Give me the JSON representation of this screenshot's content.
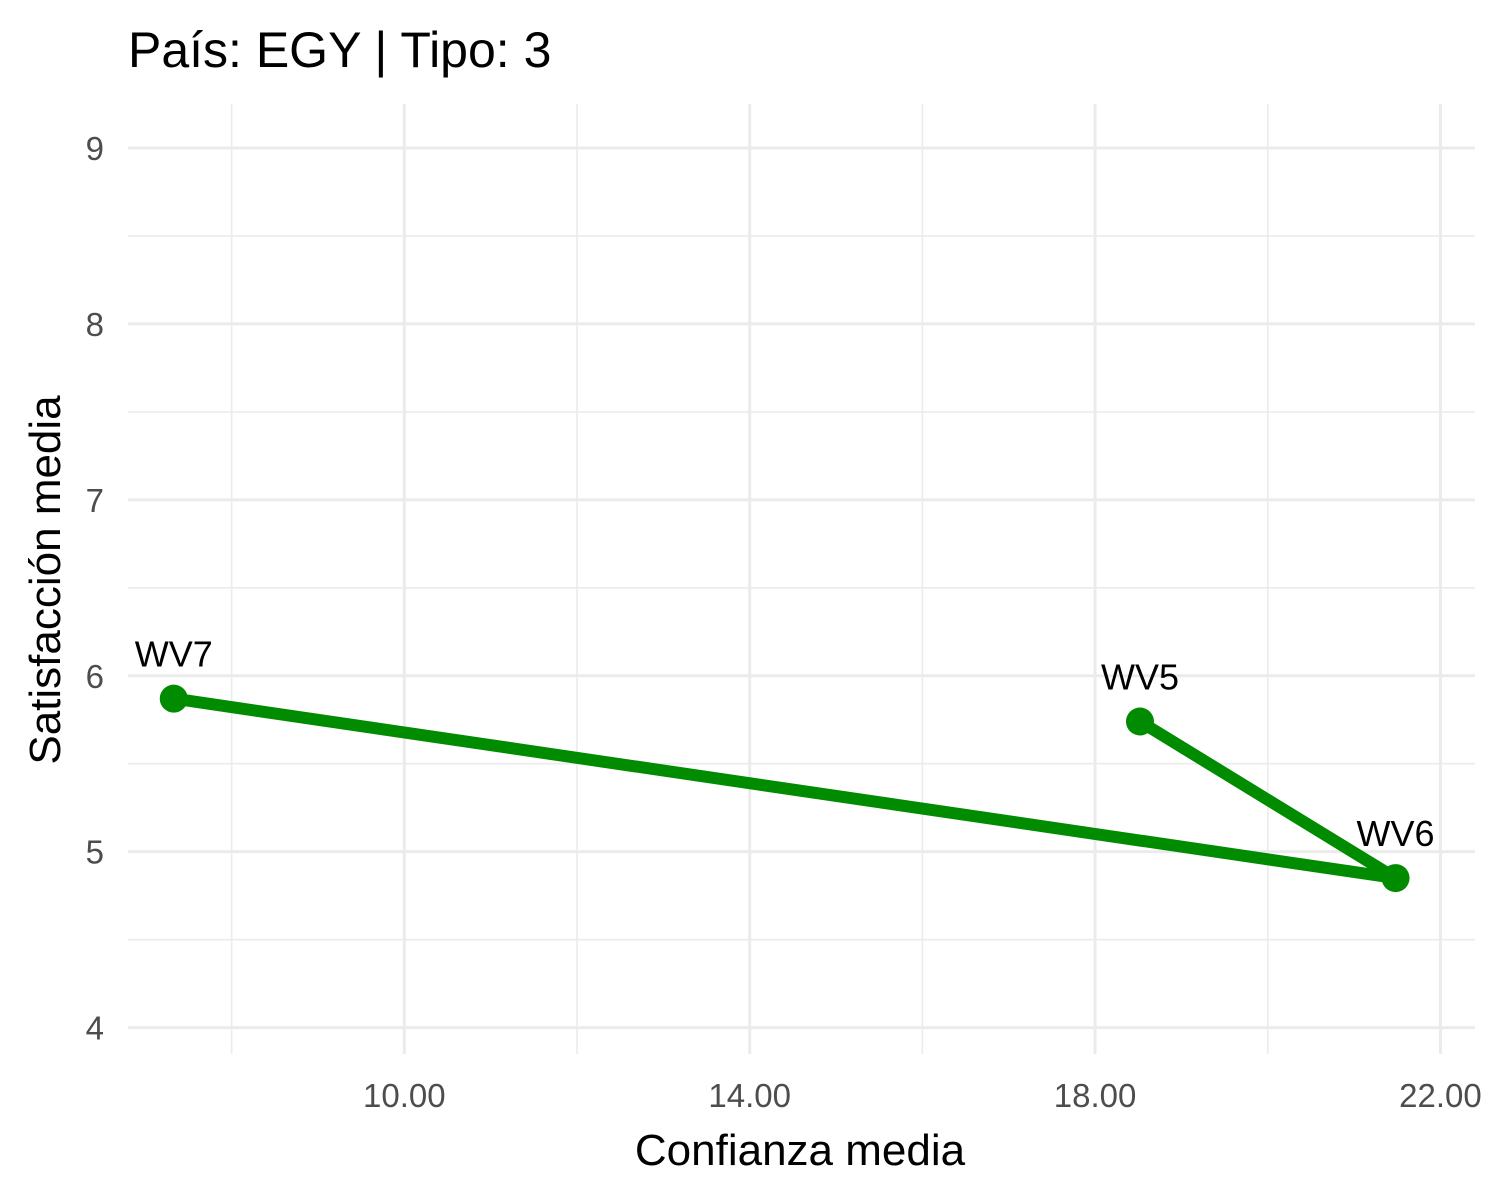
{
  "chart_data": {
    "type": "line",
    "title": "País: EGY | Tipo: 3",
    "xlabel": "Confianza media",
    "ylabel": "Satisfacción media",
    "xlim": [
      6.8,
      22.4
    ],
    "ylim": [
      3.85,
      9.25
    ],
    "x_ticks": [
      10,
      14,
      18,
      22
    ],
    "x_tick_labels": [
      "10.00",
      "14.00",
      "18.00",
      "22.00"
    ],
    "y_ticks": [
      4,
      5,
      6,
      7,
      8,
      9
    ],
    "y_tick_labels": [
      "4",
      "5",
      "6",
      "7",
      "8",
      "9"
    ],
    "grid": true,
    "legend": "none",
    "line_color": "#008b00",
    "points": [
      {
        "label": "WV5",
        "x": 18.52,
        "y": 5.74
      },
      {
        "label": "WV6",
        "x": 21.48,
        "y": 4.85
      },
      {
        "label": "WV7",
        "x": 7.33,
        "y": 5.87
      }
    ]
  }
}
